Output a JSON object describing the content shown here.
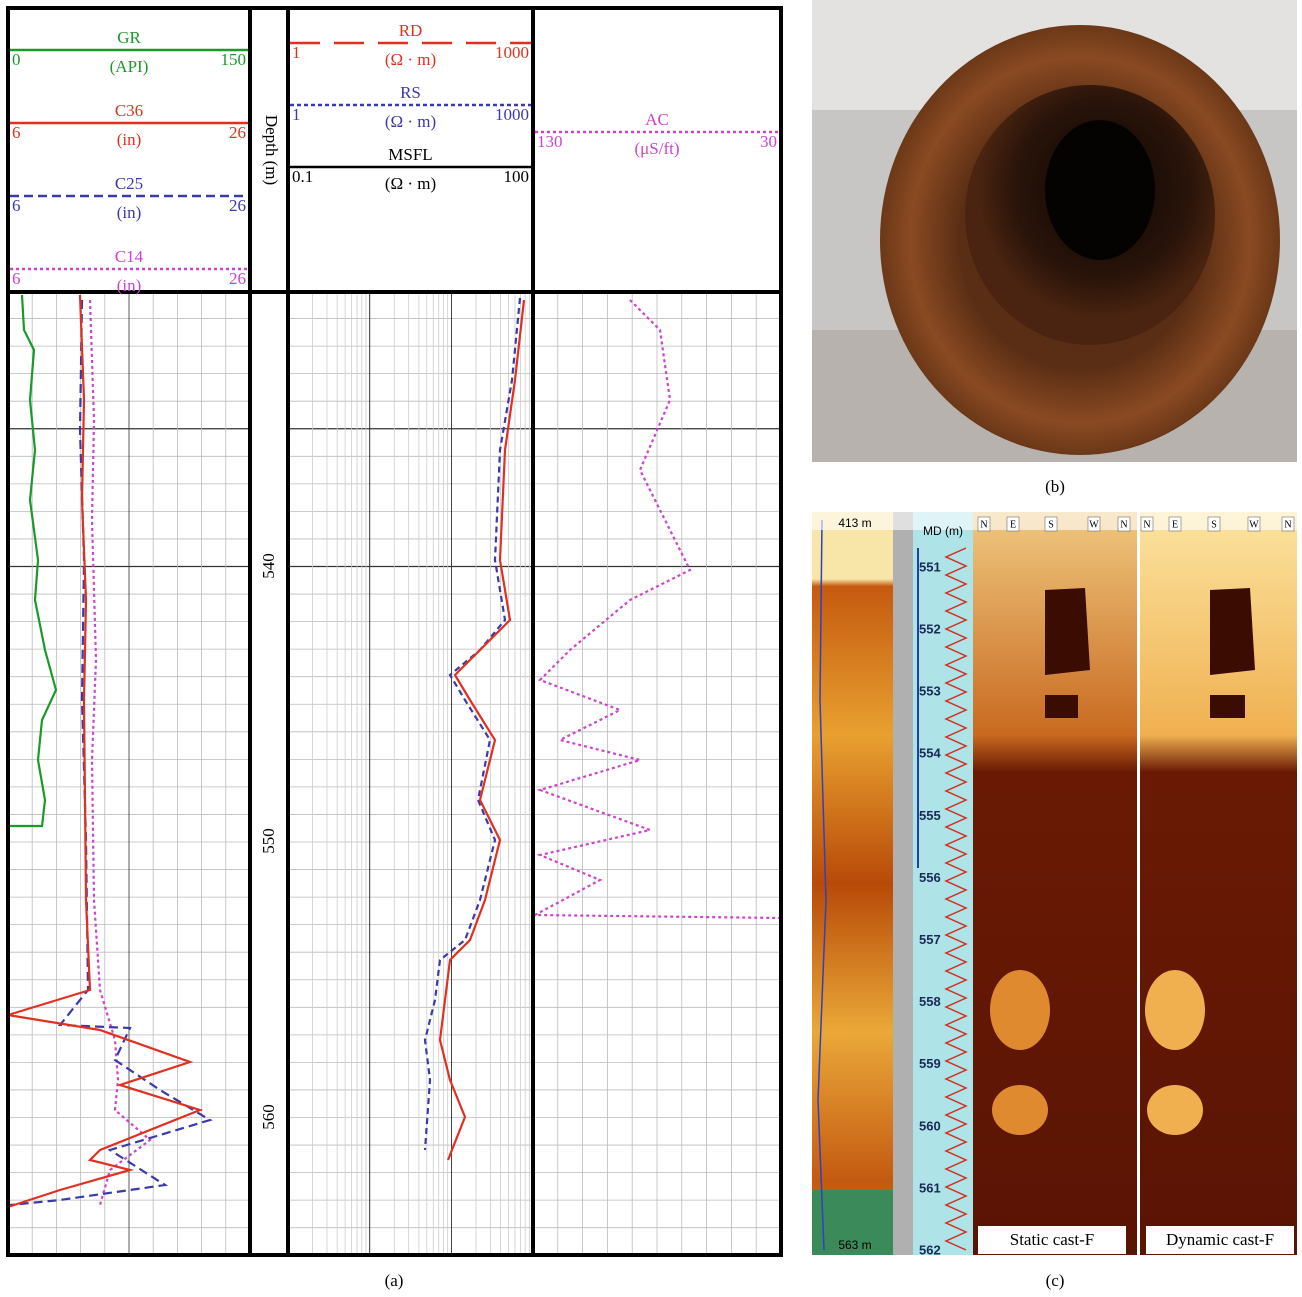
{
  "panel_a": {
    "caption": "(a)",
    "depth_label": "Depth (m)",
    "depth_ticks": [
      "540",
      "550",
      "560"
    ],
    "track1": [
      {
        "name": "GR",
        "unit": "(API)",
        "left": "0",
        "right": "150"
      },
      {
        "name": "C36",
        "unit": "(in)",
        "left": "6",
        "right": "26"
      },
      {
        "name": "C25",
        "unit": "(in)",
        "left": "6",
        "right": "26"
      },
      {
        "name": "C14",
        "unit": "(in)",
        "left": "6",
        "right": "26"
      }
    ],
    "track2": [
      {
        "name": "RD",
        "unit": "(Ω · m)",
        "left": "1",
        "right": "1000"
      },
      {
        "name": "RS",
        "unit": "(Ω · m)",
        "left": "1",
        "right": "1000"
      },
      {
        "name": "MSFL",
        "unit": "(Ω · m)",
        "left": "0.1",
        "right": "100"
      }
    ],
    "track3": [
      {
        "name": "AC",
        "unit": "(μS/ft)",
        "left": "130",
        "right": "30"
      }
    ]
  },
  "panel_b": {
    "caption": "(b)"
  },
  "panel_c": {
    "caption": "(c)",
    "top_depth": "413 m",
    "bottom_depth": "563 m",
    "md_label": "MD (m)",
    "md_ticks": [
      "551",
      "552",
      "553",
      "554",
      "555",
      "556",
      "557",
      "558",
      "559",
      "560",
      "561",
      "562"
    ],
    "compass_static": [
      "N",
      "E",
      "S",
      "W",
      "N"
    ],
    "compass_dynamic": [
      "N",
      "E",
      "S",
      "W",
      "N"
    ],
    "static_label": "Static cast-F",
    "dynamic_label": "Dynamic cast-F"
  }
}
